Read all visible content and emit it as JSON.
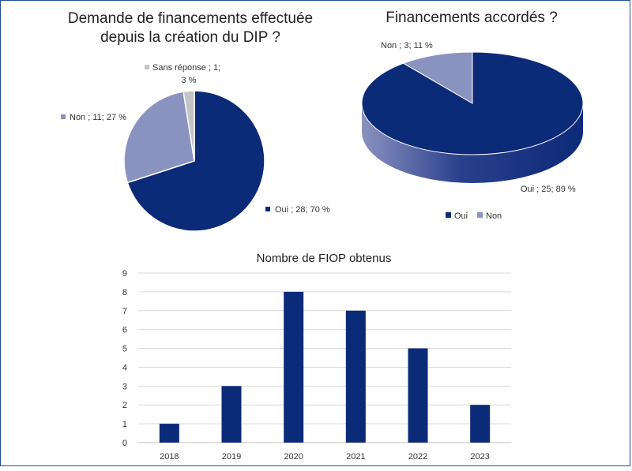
{
  "chart_data": [
    {
      "type": "pie",
      "title_lines": [
        "Demande de financements effectuée",
        "depuis la création du DIP ?"
      ],
      "slices": [
        {
          "label": "Oui",
          "value": 28,
          "percent": "70 %",
          "color": "#0b2a78",
          "label_text": "Oui ; 28; 70 %"
        },
        {
          "label": "Non",
          "value": 11,
          "percent": "27 %",
          "color": "#8a92bf",
          "label_text": "Non ; 11; 27 %"
        },
        {
          "label": "Sans réponse",
          "value": 1,
          "percent": "3 %",
          "color": "#c4c4c4",
          "label_lines": [
            "Sans réponse ; 1;",
            "3 %"
          ]
        }
      ]
    },
    {
      "type": "pie",
      "style": "3d",
      "title": "Financements accordés ?",
      "slices": [
        {
          "label": "Oui",
          "value": 25,
          "percent": "89 %",
          "color": "#0b2a78",
          "label_text": "Oui ; 25; 89 %"
        },
        {
          "label": "Non",
          "value": 3,
          "percent": "11 %",
          "color": "#8a92bf",
          "label_text": "Non ; 3; 11 %"
        }
      ],
      "legend": {
        "position": "bottom",
        "items": [
          "Oui",
          "Non"
        ]
      }
    },
    {
      "type": "bar",
      "title": "Nombre de FIOP obtenus",
      "categories": [
        "2018",
        "2019",
        "2020",
        "2021",
        "2022",
        "2023"
      ],
      "values": [
        1,
        3,
        8,
        7,
        5,
        2
      ],
      "ylim": [
        0,
        9
      ],
      "yticks": [
        "0",
        "1",
        "2",
        "3",
        "4",
        "5",
        "6",
        "7",
        "8",
        "9"
      ],
      "grid": true,
      "color": "#0b2a78"
    }
  ]
}
